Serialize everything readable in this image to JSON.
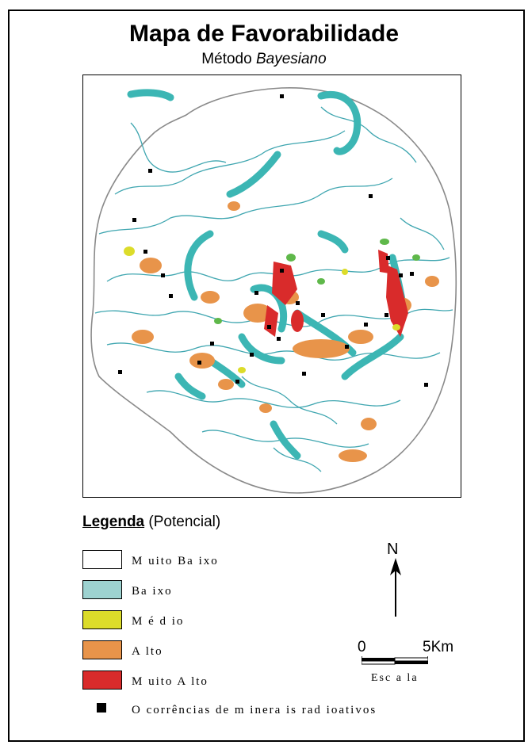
{
  "map": {
    "title": "Mapa de Favorabilidade",
    "subtitle_prefix": "Método",
    "subtitle_method": "Bayesiano"
  },
  "legend": {
    "title_bold": "Legenda",
    "title_rest": "(Potencial)",
    "classes": [
      {
        "label": "M uito Ba ixo",
        "color": "#ffffff"
      },
      {
        "label": "Ba ixo",
        "color": "#9dd2d0"
      },
      {
        "label": "M é d io",
        "color": "#dcdc2a"
      },
      {
        "label": "A lto",
        "color": "#e8944a"
      },
      {
        "label": "M uito A lto",
        "color": "#d92b2b"
      }
    ],
    "occurrence_label": "O corrências de m inera is rad ioativos"
  },
  "north": {
    "label": "N"
  },
  "scale": {
    "start": "0",
    "end": "5Km",
    "caption": "Esc a la"
  },
  "colors": {
    "low": "#3cb6b4",
    "medium": "#d8d83a",
    "high": "#e8944a",
    "very_high": "#d92b2b",
    "green": "#5fb84a",
    "occurrence": "#000000",
    "outline": "#3fa6b0"
  }
}
